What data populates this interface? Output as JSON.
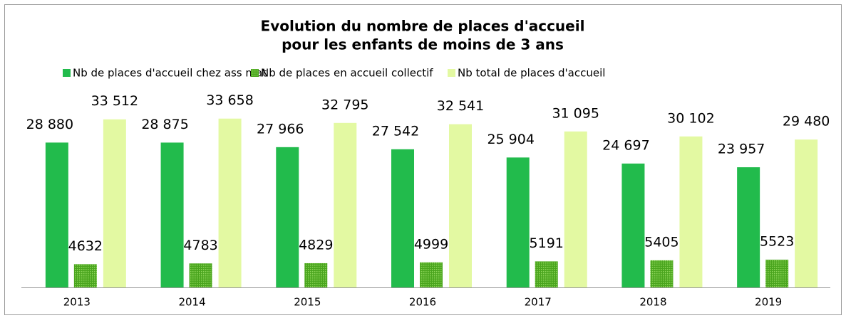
{
  "chart_data": {
    "type": "bar",
    "title": [
      "Evolution du nombre de places d'accueil",
      "pour les enfants de moins de 3 ans"
    ],
    "categories": [
      "2013",
      "2014",
      "2015",
      "2016",
      "2017",
      "2018",
      "2019"
    ],
    "series": [
      {
        "name": "Nb de places d'accueil chez ass mat",
        "color": "#22bb4c",
        "values": [
          28880,
          28875,
          27966,
          27542,
          25904,
          24697,
          23957
        ],
        "value_labels": [
          "28 880",
          "28 875",
          "27 966",
          "27 542",
          "25 904",
          "24 697",
          "23 957"
        ]
      },
      {
        "name": "Nb de places en accueil collectif",
        "color": "#5cb82a",
        "values": [
          4632,
          4783,
          4829,
          4999,
          5191,
          5405,
          5523
        ]
      },
      {
        "name": "Nb total de places d'accueil",
        "color": "#e3f9a2",
        "values": [
          33512,
          33658,
          32795,
          32541,
          31095,
          30102,
          29480
        ],
        "value_labels": [
          "33 512",
          "33 658",
          "32 795",
          "32 541",
          "31 095",
          "30 102",
          "29 480"
        ]
      }
    ],
    "ylim": [
      0,
      40000
    ],
    "legend": "top",
    "grid": false
  }
}
